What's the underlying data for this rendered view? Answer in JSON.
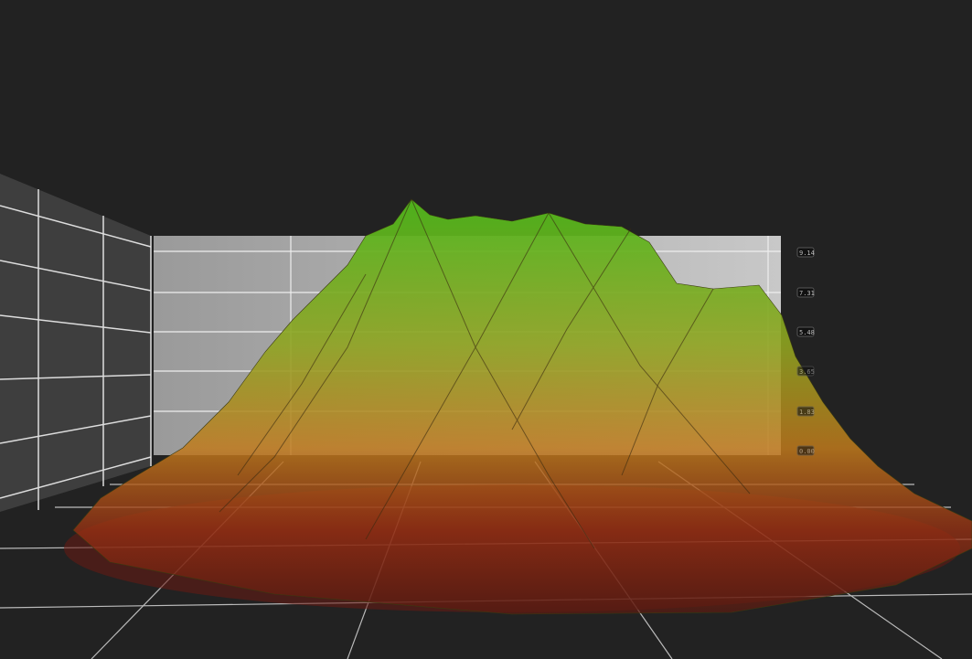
{
  "chart_data": {
    "type": "surface",
    "title": "",
    "z_ticks": [
      "9.14",
      "7.31",
      "5.48",
      "3.65",
      "1.83",
      "0.00"
    ],
    "zlim": [
      0,
      9.14
    ],
    "grid": true,
    "colormap": [
      "#8b1a10",
      "#c8501a",
      "#a8a020",
      "#4caf1a"
    ]
  }
}
